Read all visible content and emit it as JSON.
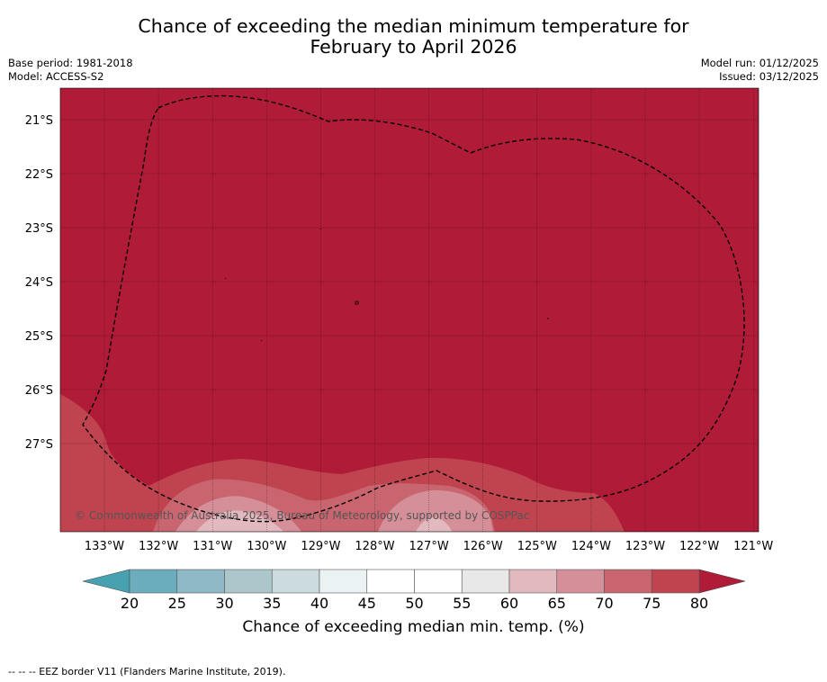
{
  "title": {
    "line1": "Chance of exceeding the median minimum temperature for",
    "line2": "February to April 2026"
  },
  "meta": {
    "base_period": "Base period: 1981-2018",
    "model": "Model: ACCESS-S2",
    "model_run": "Model run: 01/12/2025",
    "issued": "Issued: 03/12/2025"
  },
  "map": {
    "lat_labels": [
      "21°S",
      "22°S",
      "23°S",
      "24°S",
      "25°S",
      "26°S",
      "27°S"
    ],
    "lon_labels": [
      "133°W",
      "132°W",
      "131°W",
      "130°W",
      "129°W",
      "128°W",
      "127°W",
      "126°W",
      "125°W",
      "124°W",
      "123°W",
      "122°W",
      "121°W"
    ],
    "copyright": "© Commonwealth of Australia 2025, Bureau of Meteorology, supported by COSPPac"
  },
  "colorbar": {
    "ticks": [
      "20",
      "25",
      "30",
      "35",
      "40",
      "45",
      "50",
      "55",
      "60",
      "65",
      "70",
      "75",
      "80"
    ],
    "label": "Chance of exceeding median min. temp. (%)",
    "colors": [
      "#6badbd",
      "#8dbac6",
      "#abc7cc",
      "#cbdbde",
      "#ebf2f4",
      "#ffffff",
      "#ffffff",
      "#e8e8e8",
      "#e2b9bf",
      "#d58f98",
      "#c9656f",
      "#bf444f"
    ],
    "under_color": "#47a1b0",
    "over_color": "#b01b38"
  },
  "footnote": "--  --  -- EEZ border V11 (Flanders Marine Institute, 2019)."
}
